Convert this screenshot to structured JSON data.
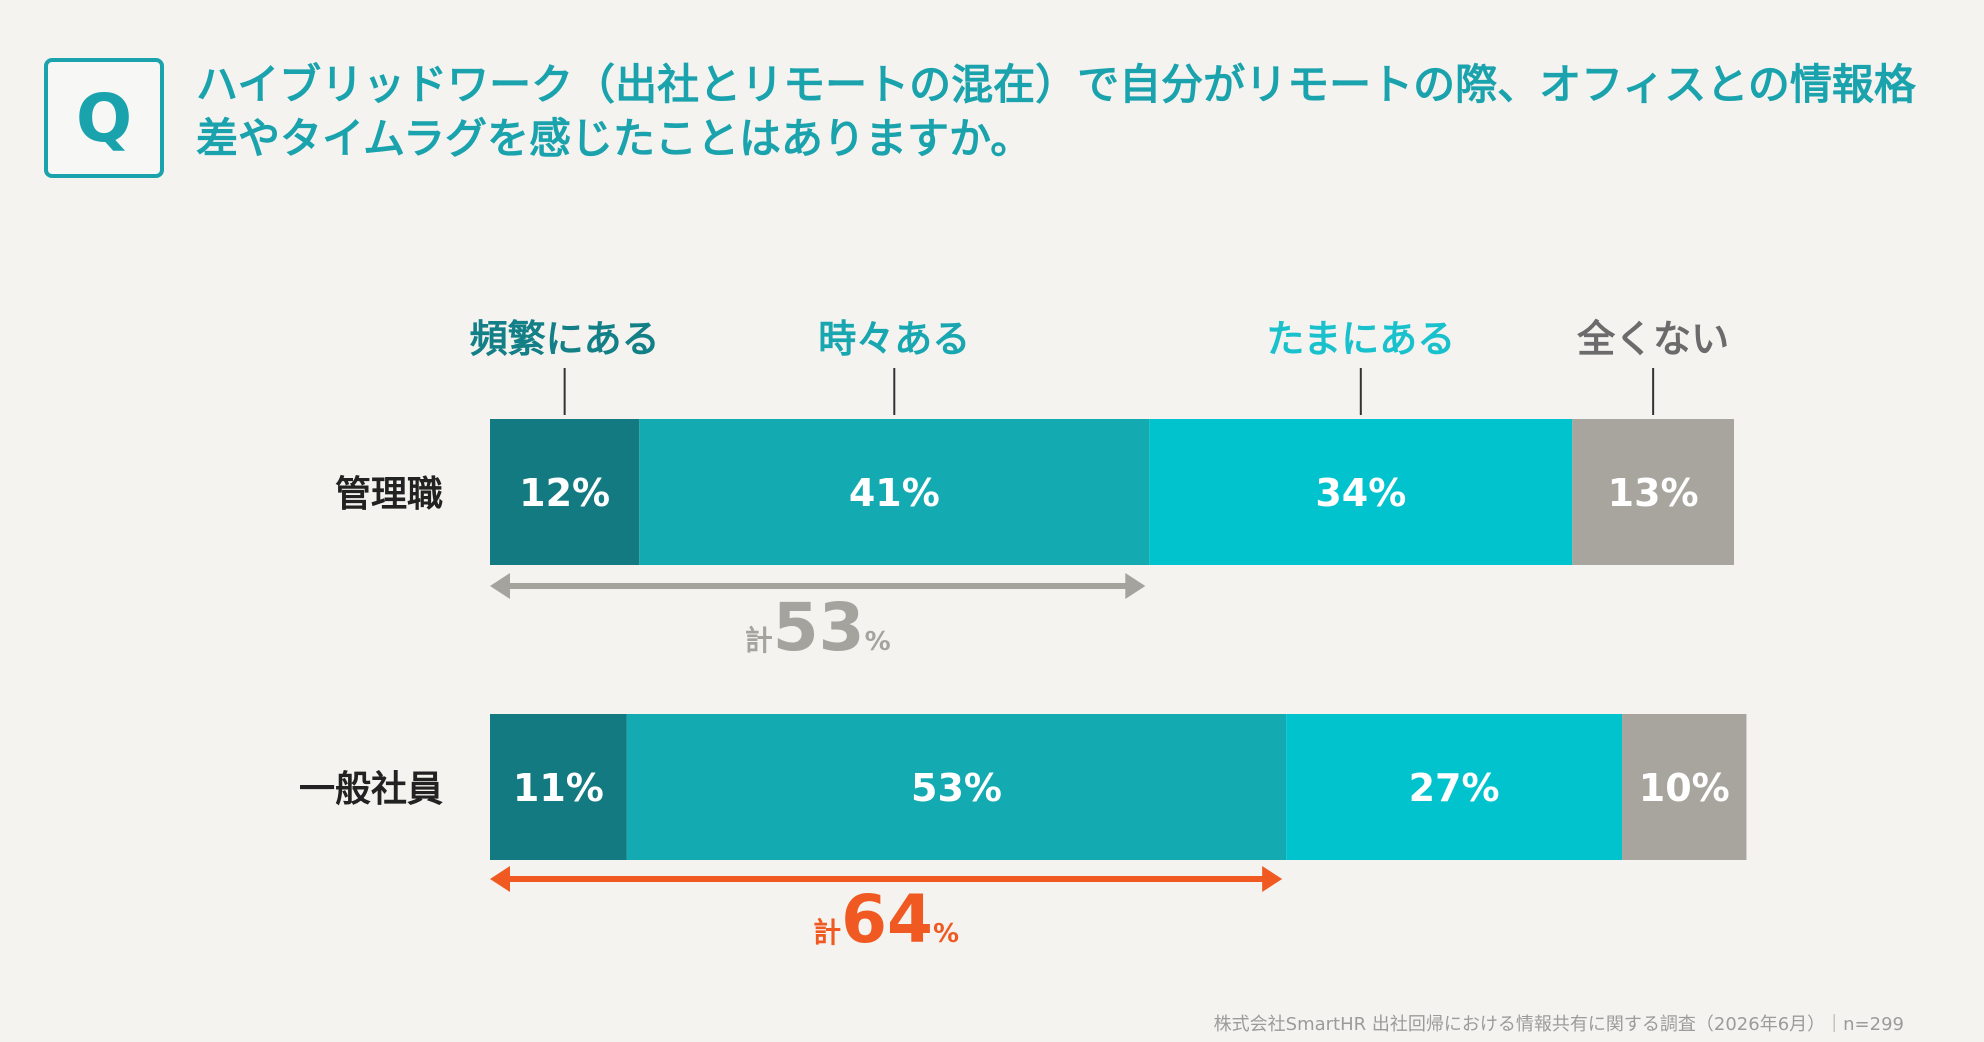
{
  "question": {
    "badge": "Q",
    "text": "ハイブリッドワーク（出社とリモートの混在）で自分がリモートの際、オフィスとの情報格差やタイムラグを感じたことはありますか。"
  },
  "chart_data": {
    "type": "bar",
    "orientation": "horizontal",
    "stacked": true,
    "normalized": true,
    "legend_position": "top",
    "categories": [
      "管理職",
      "一般社員"
    ],
    "series": [
      {
        "name": "頻繁にある",
        "values": [
          12,
          11
        ],
        "labels": [
          "12%",
          "11%"
        ],
        "color": "#127a80"
      },
      {
        "name": "時々ある",
        "values": [
          41,
          53
        ],
        "labels": [
          "41%",
          "53%"
        ],
        "color": "#13aab1"
      },
      {
        "name": "たまにある",
        "values": [
          34,
          27
        ],
        "labels": [
          "34%",
          "27%"
        ],
        "color": "#00c3ce"
      },
      {
        "name": "全くない",
        "values": [
          13,
          10
        ],
        "labels": [
          "13%",
          "10%"
        ],
        "color": "#a8a59e"
      }
    ],
    "legend_colors": [
      "#137f86",
      "#18a7b0",
      "#19c1cc",
      "#6b6b6b"
    ],
    "totals": [
      {
        "prefix": "計",
        "value": "53",
        "unit": "%",
        "span": 53,
        "color": "#a5a39d"
      },
      {
        "prefix": "計",
        "value": "64",
        "unit": "%",
        "span": 64,
        "color": "#f05a22"
      }
    ]
  },
  "footer": {
    "source": "株式会社SmartHR 出社回帰における情報共有に関する調査（2026年6月）｜n=299"
  }
}
